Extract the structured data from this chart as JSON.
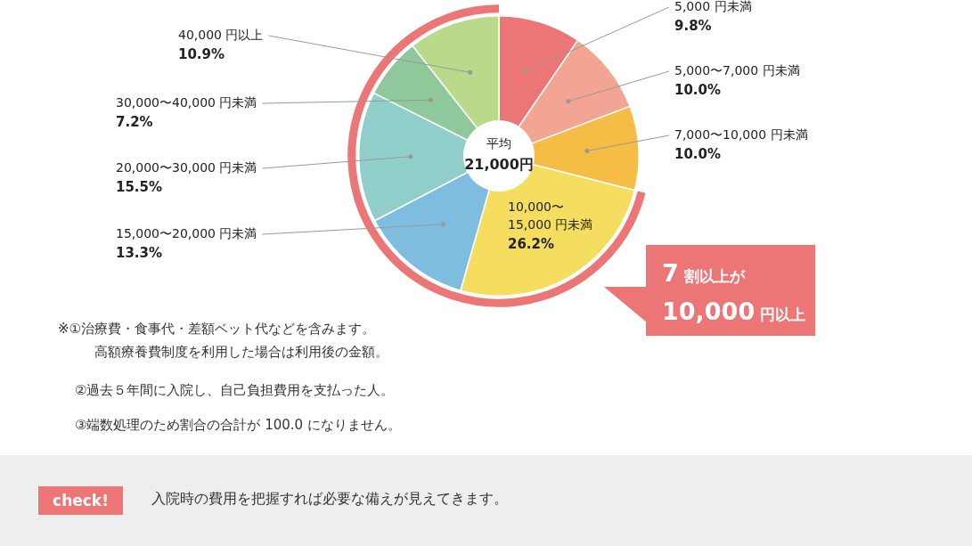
{
  "chart_data": {
    "type": "donut",
    "categories": [
      "5,000 円未満",
      "5,000〜7,000 円未満",
      "7,000〜10,000 円未満",
      "10,000〜15,000 円未満",
      "15,000〜20,000 円未満",
      "20,000〜30,000 円未満",
      "30,000〜40,000 円未満",
      "40,000 円以上"
    ],
    "values": [
      9.8,
      10.0,
      10.0,
      26.2,
      13.3,
      15.5,
      7.2,
      10.9
    ],
    "value_labels": [
      "9.8%",
      "10.0%",
      "10.0%",
      "26.2%",
      "13.3%",
      "15.5%",
      "7.2%",
      "10.9%"
    ],
    "colors": [
      "#ec7576",
      "#f3a594",
      "#f5bd45",
      "#f5dd5f",
      "#7fbde0",
      "#90cfc9",
      "#8fc99b",
      "#b9d98b"
    ],
    "legend": false,
    "annotations": [
      "平均\n21,000円",
      "7 割以上が\n10,000 円以上",
      "※①治療費・食事代・差額ベット代などを含みます。",
      "高額療養費制度を利用した場合は利用後の金額。",
      "②過去５年間に入院し、自己負担費用を支払った人。",
      "③端数処理のため割合の合計が 100.0 になりません。",
      "check!",
      "入院時の費用を把握すれば必要な備えが見えてきます。"
    ]
  }
}
